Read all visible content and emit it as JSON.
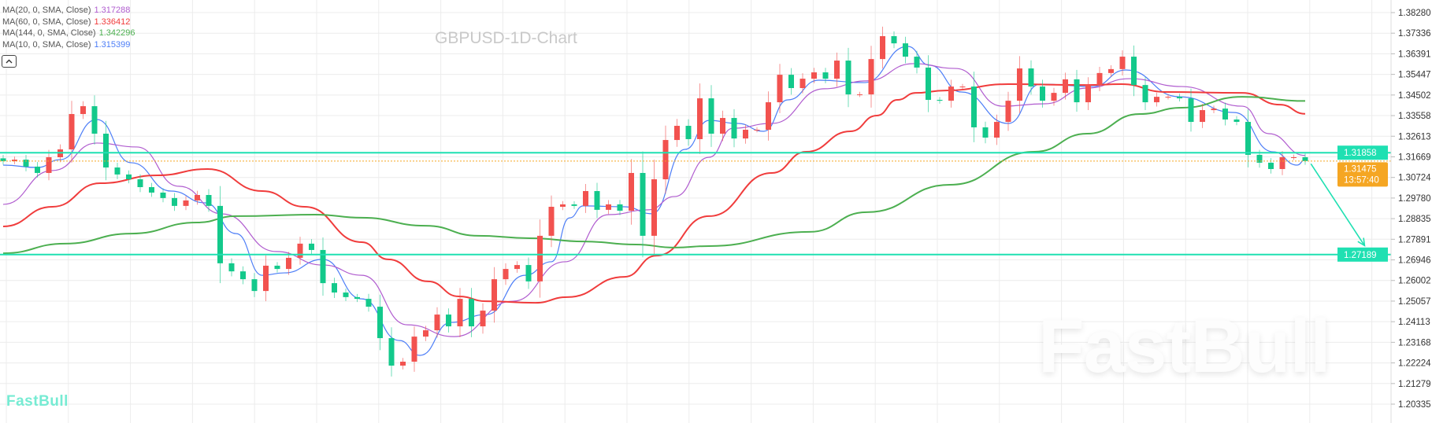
{
  "title": "GBPUSD-1D-Chart",
  "logo_text": "FastBull",
  "watermark_text": "FastBull",
  "legend": [
    {
      "label": "MA(20, 0, SMA, Close)",
      "value": "1.317288",
      "color": "#b05ccf"
    },
    {
      "label": "MA(60, 0, SMA, Close)",
      "value": "1.336412",
      "color": "#f03c3c"
    },
    {
      "label": "MA(144, 0, SMA, Close)",
      "value": "1.342296",
      "color": "#4caf50"
    },
    {
      "label": "MA(10, 0, SMA, Close)",
      "value": "1.315399",
      "color": "#4d7ef7"
    }
  ],
  "collapse_icon": "chevron-up-icon",
  "colors": {
    "up": "#f2524f",
    "down": "#13c98b",
    "hline": "#1fe0b2",
    "current": "#f5a623",
    "grid": "#ececec",
    "axis_text": "#333333"
  },
  "chart_data": {
    "type": "candlestick",
    "title": "GBPUSD-1D-Chart",
    "ylim": [
      1.198,
      1.387
    ],
    "grid": true,
    "y_ticks": [
      "1.38280",
      "1.37336",
      "1.36391",
      "1.35447",
      "1.34502",
      "1.33558",
      "1.32613",
      "1.31669",
      "1.30724",
      "1.29780",
      "1.28835",
      "1.27891",
      "1.26946",
      "1.26002",
      "1.25057",
      "1.24113",
      "1.23168",
      "1.22224",
      "1.21279",
      "1.20335"
    ],
    "first_open": 1.316,
    "closes": [
      1.3147,
      1.3154,
      1.3122,
      1.3093,
      1.3165,
      1.3201,
      1.3363,
      1.3399,
      1.3273,
      1.3118,
      1.3086,
      1.3064,
      1.3028,
      1.3003,
      1.2978,
      1.2942,
      1.2967,
      1.2992,
      1.2942,
      1.2679,
      1.2642,
      1.2606,
      1.2552,
      1.2668,
      1.2653,
      1.2704,
      1.2769,
      1.274,
      1.2588,
      1.2545,
      1.2524,
      1.2516,
      1.248,
      1.2336,
      1.221,
      1.2228,
      1.2343,
      1.2372,
      1.2444,
      1.239,
      1.2516,
      1.239,
      1.2462,
      1.2606,
      1.2653,
      1.2671,
      1.2596,
      1.2805,
      1.2938,
      1.2949,
      1.2942,
      1.301,
      1.2924,
      1.2949,
      1.292,
      1.3093,
      1.2805,
      1.3064,
      1.3244,
      1.3309,
      1.3248,
      1.3435,
      1.3273,
      1.3345,
      1.3251,
      1.3291,
      1.3291,
      1.3417,
      1.3543,
      1.3482,
      1.3525,
      1.3554,
      1.3525,
      1.3608,
      1.3453,
      1.3453,
      1.3615,
      1.372,
      1.3687,
      1.3626,
      1.3576,
      1.3428,
      1.3424,
      1.3489,
      1.3489,
      1.3302,
      1.3255,
      1.3327,
      1.3424,
      1.3572,
      1.3489,
      1.3424,
      1.346,
      1.3522,
      1.3417,
      1.3496,
      1.3551,
      1.3569,
      1.3626,
      1.3496,
      1.3417,
      1.3442,
      1.3442,
      1.3435,
      1.3327,
      1.3381,
      1.3388,
      1.3338,
      1.3327,
      1.3176,
      1.314,
      1.3111,
      1.3165,
      1.3165,
      1.31475
    ],
    "moving_averages": [
      {
        "name": "MA(10, 0, SMA, Close)",
        "color": "#4d7ef7",
        "points": [
          [
            0,
            1.3129
          ],
          [
            3,
            1.3118
          ],
          [
            5,
            1.3154
          ],
          [
            8.2,
            1.3338
          ],
          [
            11.2,
            1.314
          ],
          [
            14.7,
            1.301
          ],
          [
            17.7,
            1.2956
          ],
          [
            20.4,
            1.2815
          ],
          [
            22.7,
            1.2624
          ],
          [
            24.6,
            1.2635
          ],
          [
            28,
            1.2697
          ],
          [
            31.4,
            1.2516
          ],
          [
            34.7,
            1.2325
          ],
          [
            36.5,
            1.2257
          ],
          [
            39.2,
            1.2408
          ],
          [
            42.3,
            1.2444
          ],
          [
            45.7,
            1.2624
          ],
          [
            48,
            1.2686
          ],
          [
            49.6,
            1.2887
          ],
          [
            50.8,
            1.2942
          ],
          [
            54.4,
            1.2938
          ],
          [
            56.8,
            1.2906
          ],
          [
            59.7,
            1.3201
          ],
          [
            61.8,
            1.3334
          ],
          [
            64.3,
            1.332
          ],
          [
            66.6,
            1.3284
          ],
          [
            68.7,
            1.3428
          ],
          [
            71.4,
            1.3518
          ],
          [
            75.4,
            1.3507
          ],
          [
            79.2,
            1.3673
          ],
          [
            81.1,
            1.3587
          ],
          [
            83.9,
            1.3464
          ],
          [
            88,
            1.332
          ],
          [
            90.8,
            1.35
          ],
          [
            95.4,
            1.3489
          ],
          [
            98.3,
            1.3565
          ],
          [
            103,
            1.3442
          ],
          [
            107.8,
            1.337
          ],
          [
            111.2,
            1.319
          ],
          [
            113.3,
            1.3129
          ],
          [
            114,
            1.3154
          ]
        ]
      },
      {
        "name": "MA(20, 0, SMA, Close)",
        "color": "#b05ccf",
        "points": [
          [
            0,
            1.2949
          ],
          [
            4.3,
            1.3104
          ],
          [
            8.2,
            1.323
          ],
          [
            11.7,
            1.3212
          ],
          [
            15.4,
            1.3032
          ],
          [
            19.2,
            1.2905
          ],
          [
            23.9,
            1.2733
          ],
          [
            28,
            1.2671
          ],
          [
            31.4,
            1.2624
          ],
          [
            35.4,
            1.2397
          ],
          [
            39.5,
            1.2343
          ],
          [
            44.6,
            1.2505
          ],
          [
            49.2,
            1.2686
          ],
          [
            53,
            1.2902
          ],
          [
            56.5,
            1.2924
          ],
          [
            58.8,
            1.2985
          ],
          [
            61.8,
            1.3165
          ],
          [
            63.9,
            1.3298
          ],
          [
            67.3,
            1.332
          ],
          [
            71.9,
            1.3479
          ],
          [
            75.6,
            1.3515
          ],
          [
            79.7,
            1.3594
          ],
          [
            83.4,
            1.3572
          ],
          [
            87.5,
            1.3399
          ],
          [
            91.2,
            1.341
          ],
          [
            94.9,
            1.3482
          ],
          [
            98.6,
            1.3525
          ],
          [
            103.2,
            1.3489
          ],
          [
            108.5,
            1.3399
          ],
          [
            110.8,
            1.3273
          ],
          [
            114,
            1.3173
          ]
        ]
      },
      {
        "name": "MA(60, 0, SMA, Close)",
        "color": "#f03c3c",
        "points": [
          [
            0,
            1.2848
          ],
          [
            4.3,
            1.2938
          ],
          [
            8.5,
            1.3046
          ],
          [
            13.5,
            1.3082
          ],
          [
            17.9,
            1.3111
          ],
          [
            22.7,
            1.301
          ],
          [
            26.4,
            1.2938
          ],
          [
            31.4,
            1.2776
          ],
          [
            33.7,
            1.2697
          ],
          [
            37.2,
            1.2596
          ],
          [
            39.9,
            1.2527
          ],
          [
            42.3,
            1.2505
          ],
          [
            46.6,
            1.2498
          ],
          [
            49.4,
            1.2524
          ],
          [
            54.4,
            1.2617
          ],
          [
            57.2,
            1.2714
          ],
          [
            61.8,
            1.2895
          ],
          [
            67.3,
            1.3093
          ],
          [
            70.3,
            1.319
          ],
          [
            74.2,
            1.3284
          ],
          [
            76.5,
            1.3356
          ],
          [
            78.3,
            1.3428
          ],
          [
            79.9,
            1.346
          ],
          [
            82.5,
            1.3471
          ],
          [
            88,
            1.35
          ],
          [
            94.9,
            1.3496
          ],
          [
            97.9,
            1.35
          ],
          [
            101.8,
            1.3464
          ],
          [
            108.5,
            1.346
          ],
          [
            111.8,
            1.3406
          ],
          [
            114,
            1.3364
          ]
        ]
      },
      {
        "name": "MA(144, 0, SMA, Close)",
        "color": "#4caf50",
        "points": [
          [
            0,
            1.2725
          ],
          [
            5.4,
            1.2769
          ],
          [
            11.2,
            1.2815
          ],
          [
            17,
            1.2866
          ],
          [
            20.4,
            1.2895
          ],
          [
            27.3,
            1.2902
          ],
          [
            31.4,
            1.2888
          ],
          [
            37,
            1.2851
          ],
          [
            41.6,
            1.2805
          ],
          [
            46.1,
            1.2794
          ],
          [
            50.8,
            1.2779
          ],
          [
            55.4,
            1.2765
          ],
          [
            58.8,
            1.2751
          ],
          [
            61.8,
            1.2758
          ],
          [
            70.6,
            1.2823
          ],
          [
            75.6,
            1.2913
          ],
          [
            82.9,
            1.3039
          ],
          [
            90.3,
            1.319
          ],
          [
            94.9,
            1.3273
          ],
          [
            99.5,
            1.3363
          ],
          [
            103.2,
            1.3392
          ],
          [
            108.5,
            1.3442
          ],
          [
            114,
            1.3423
          ]
        ]
      }
    ],
    "horizontal_lines": [
      {
        "price": 1.31858,
        "label": "1.31858"
      },
      {
        "price": 1.27189,
        "label": "1.27189"
      }
    ],
    "current_price": {
      "price": 1.31475,
      "label": "1.31475",
      "countdown": "13:57:40"
    },
    "trend_arrow": {
      "from": [
        114.5,
        1.3135
      ],
      "to": [
        119.2,
        1.276
      ]
    }
  }
}
